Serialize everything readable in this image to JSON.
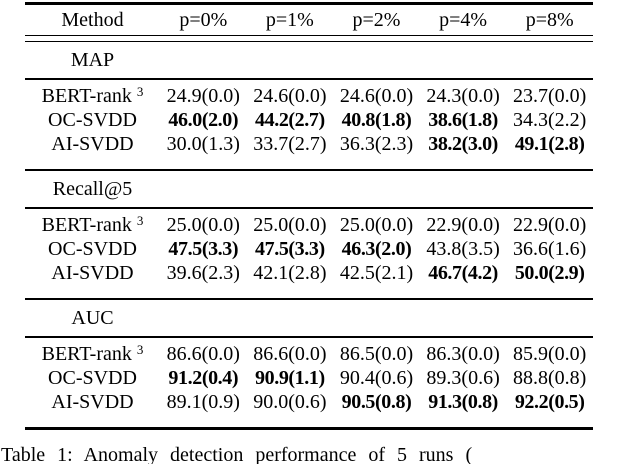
{
  "table": {
    "header": [
      "Method",
      "p=0%",
      "p=1%",
      "p=2%",
      "p=4%",
      "p=8%"
    ],
    "sections": [
      {
        "title": "MAP",
        "rows": [
          {
            "method": "BERT-rank",
            "sup": "3",
            "cells": [
              "24.9(0.0)",
              "24.6(0.0)",
              "24.6(0.0)",
              "24.3(0.0)",
              "23.7(0.0)"
            ],
            "bold": [
              false,
              false,
              false,
              false,
              false
            ]
          },
          {
            "method": "OC-SVDD",
            "sup": "",
            "cells": [
              "46.0(2.0)",
              "44.2(2.7)",
              "40.8(1.8)",
              "38.6(1.8)",
              "34.3(2.2)"
            ],
            "bold": [
              true,
              true,
              true,
              true,
              false
            ]
          },
          {
            "method": "AI-SVDD",
            "sup": "",
            "cells": [
              "30.0(1.3)",
              "33.7(2.7)",
              "36.3(2.3)",
              "38.2(3.0)",
              "49.1(2.8)"
            ],
            "bold": [
              false,
              false,
              false,
              true,
              true
            ]
          }
        ]
      },
      {
        "title": "Recall@5",
        "rows": [
          {
            "method": "BERT-rank",
            "sup": "3",
            "cells": [
              "25.0(0.0)",
              "25.0(0.0)",
              "25.0(0.0)",
              "22.9(0.0)",
              "22.9(0.0)"
            ],
            "bold": [
              false,
              false,
              false,
              false,
              false
            ]
          },
          {
            "method": "OC-SVDD",
            "sup": "",
            "cells": [
              "47.5(3.3)",
              "47.5(3.3)",
              "46.3(2.0)",
              "43.8(3.5)",
              "36.6(1.6)"
            ],
            "bold": [
              true,
              true,
              true,
              false,
              false
            ]
          },
          {
            "method": "AI-SVDD",
            "sup": "",
            "cells": [
              "39.6(2.3)",
              "42.1(2.8)",
              "42.5(2.1)",
              "46.7(4.2)",
              "50.0(2.9)"
            ],
            "bold": [
              false,
              false,
              false,
              true,
              true
            ]
          }
        ]
      },
      {
        "title": "AUC",
        "rows": [
          {
            "method": "BERT-rank",
            "sup": "3",
            "cells": [
              "86.6(0.0)",
              "86.6(0.0)",
              "86.5(0.0)",
              "86.3(0.0)",
              "85.9(0.0)"
            ],
            "bold": [
              false,
              false,
              false,
              false,
              false
            ]
          },
          {
            "method": "OC-SVDD",
            "sup": "",
            "cells": [
              "91.2(0.4)",
              "90.9(1.1)",
              "90.4(0.6)",
              "89.3(0.6)",
              "88.8(0.8)"
            ],
            "bold": [
              true,
              true,
              false,
              false,
              false
            ]
          },
          {
            "method": "AI-SVDD",
            "sup": "",
            "cells": [
              "89.1(0.9)",
              "90.0(0.6)",
              "90.5(0.8)",
              "91.3(0.8)",
              "92.2(0.5)"
            ],
            "bold": [
              false,
              false,
              true,
              true,
              true
            ]
          }
        ]
      }
    ]
  },
  "caption": "Table 1: Anomaly detection performance of 5 runs ("
}
